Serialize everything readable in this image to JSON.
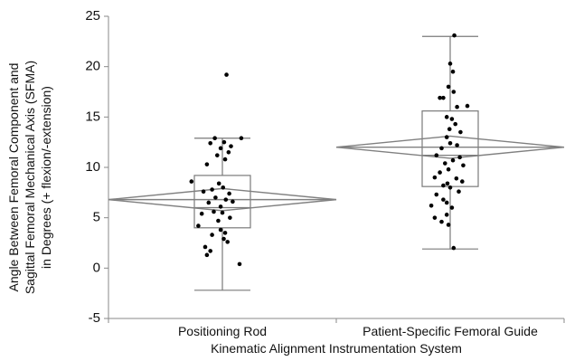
{
  "chart_data": {
    "type": "scatter",
    "subtype": "box-plot-with-jitter-and-mean-diamonds",
    "title": "",
    "xlabel": "Kinematic Alignment Instrumentation System",
    "ylabel_lines": [
      "Angle Between Femoral Component and",
      "Sagittal Femoral Mechanical Axis (SFMA)",
      "in Degrees (+ flexion/-extension)"
    ],
    "ylim": [
      -5,
      25
    ],
    "yticks": [
      -5,
      0,
      5,
      10,
      15,
      20,
      25
    ],
    "grid": false,
    "categories": [
      "Positioning Rod",
      "Patient-Specific Femoral Guide"
    ],
    "groups": [
      {
        "category": "Positioning Rod",
        "box": {
          "min": -2.2,
          "q1": 4.0,
          "median": 6.0,
          "q3": 9.2,
          "max": 12.9
        },
        "mean": 6.8,
        "ci": [
          5.7,
          7.9
        ],
        "points": [
          {
            "jitter": 0.12,
            "y": 19.2
          },
          {
            "jitter": -0.22,
            "y": 12.9
          },
          {
            "jitter": 0.55,
            "y": 12.9
          },
          {
            "jitter": -0.35,
            "y": 12.4
          },
          {
            "jitter": 0.05,
            "y": 12.5
          },
          {
            "jitter": 0.25,
            "y": 12.1
          },
          {
            "jitter": -0.05,
            "y": 11.9
          },
          {
            "jitter": 0.18,
            "y": 11.5
          },
          {
            "jitter": -0.15,
            "y": 11.2
          },
          {
            "jitter": 0.08,
            "y": 10.8
          },
          {
            "jitter": -0.45,
            "y": 10.3
          },
          {
            "jitter": -0.9,
            "y": 8.6
          },
          {
            "jitter": -0.1,
            "y": 8.4
          },
          {
            "jitter": 0.02,
            "y": 8.0
          },
          {
            "jitter": -0.3,
            "y": 7.8
          },
          {
            "jitter": -0.55,
            "y": 7.6
          },
          {
            "jitter": 0.2,
            "y": 7.4
          },
          {
            "jitter": -0.2,
            "y": 7.0
          },
          {
            "jitter": 0.1,
            "y": 6.8
          },
          {
            "jitter": 0.3,
            "y": 6.6
          },
          {
            "jitter": -0.4,
            "y": 6.5
          },
          {
            "jitter": -0.05,
            "y": 6.1
          },
          {
            "jitter": -0.25,
            "y": 5.6
          },
          {
            "jitter": 0.0,
            "y": 5.5
          },
          {
            "jitter": -0.6,
            "y": 5.4
          },
          {
            "jitter": 0.22,
            "y": 5.0
          },
          {
            "jitter": -0.12,
            "y": 4.7
          },
          {
            "jitter": -0.7,
            "y": 4.2
          },
          {
            "jitter": -0.05,
            "y": 3.8
          },
          {
            "jitter": 0.08,
            "y": 3.5
          },
          {
            "jitter": -0.3,
            "y": 3.3
          },
          {
            "jitter": 0.04,
            "y": 2.9
          },
          {
            "jitter": 0.15,
            "y": 2.6
          },
          {
            "jitter": -0.5,
            "y": 2.1
          },
          {
            "jitter": -0.35,
            "y": 1.7
          },
          {
            "jitter": -0.45,
            "y": 1.3
          },
          {
            "jitter": 0.5,
            "y": 0.4
          }
        ]
      },
      {
        "category": "Patient-Specific Femoral Guide",
        "box": {
          "min": 1.9,
          "q1": 8.1,
          "median": 11.2,
          "q3": 15.6,
          "max": 23.0
        },
        "mean": 12.0,
        "ci": [
          10.9,
          13.1
        ],
        "points": [
          {
            "jitter": 0.12,
            "y": 23.1
          },
          {
            "jitter": 0.0,
            "y": 20.3
          },
          {
            "jitter": 0.08,
            "y": 19.5
          },
          {
            "jitter": -0.05,
            "y": 18.0
          },
          {
            "jitter": 0.1,
            "y": 17.5
          },
          {
            "jitter": -0.3,
            "y": 16.9
          },
          {
            "jitter": -0.2,
            "y": 16.9
          },
          {
            "jitter": 0.2,
            "y": 16.0
          },
          {
            "jitter": 0.5,
            "y": 16.1
          },
          {
            "jitter": -0.1,
            "y": 15.0
          },
          {
            "jitter": 0.05,
            "y": 14.8
          },
          {
            "jitter": 0.15,
            "y": 14.3
          },
          {
            "jitter": -0.02,
            "y": 13.8
          },
          {
            "jitter": 0.3,
            "y": 13.5
          },
          {
            "jitter": -0.1,
            "y": 13.0
          },
          {
            "jitter": 0.0,
            "y": 12.4
          },
          {
            "jitter": 0.2,
            "y": 12.2
          },
          {
            "jitter": -0.25,
            "y": 11.9
          },
          {
            "jitter": -0.4,
            "y": 11.2
          },
          {
            "jitter": 0.28,
            "y": 11.0
          },
          {
            "jitter": 0.08,
            "y": 10.7
          },
          {
            "jitter": -0.15,
            "y": 10.4
          },
          {
            "jitter": 0.38,
            "y": 10.2
          },
          {
            "jitter": -0.05,
            "y": 9.8
          },
          {
            "jitter": -0.3,
            "y": 9.5
          },
          {
            "jitter": -0.45,
            "y": 9.0
          },
          {
            "jitter": 0.18,
            "y": 8.9
          },
          {
            "jitter": 0.35,
            "y": 8.6
          },
          {
            "jitter": -0.08,
            "y": 8.4
          },
          {
            "jitter": -0.2,
            "y": 8.2
          },
          {
            "jitter": 0.0,
            "y": 8.0
          },
          {
            "jitter": 0.25,
            "y": 7.6
          },
          {
            "jitter": -0.4,
            "y": 7.3
          },
          {
            "jitter": -0.2,
            "y": 6.8
          },
          {
            "jitter": -0.1,
            "y": 6.5
          },
          {
            "jitter": -0.55,
            "y": 6.2
          },
          {
            "jitter": 0.05,
            "y": 6.0
          },
          {
            "jitter": -0.45,
            "y": 5.0
          },
          {
            "jitter": -0.1,
            "y": 5.3
          },
          {
            "jitter": -0.25,
            "y": 4.6
          },
          {
            "jitter": -0.05,
            "y": 4.3
          },
          {
            "jitter": 0.1,
            "y": 2.0
          }
        ]
      }
    ]
  }
}
